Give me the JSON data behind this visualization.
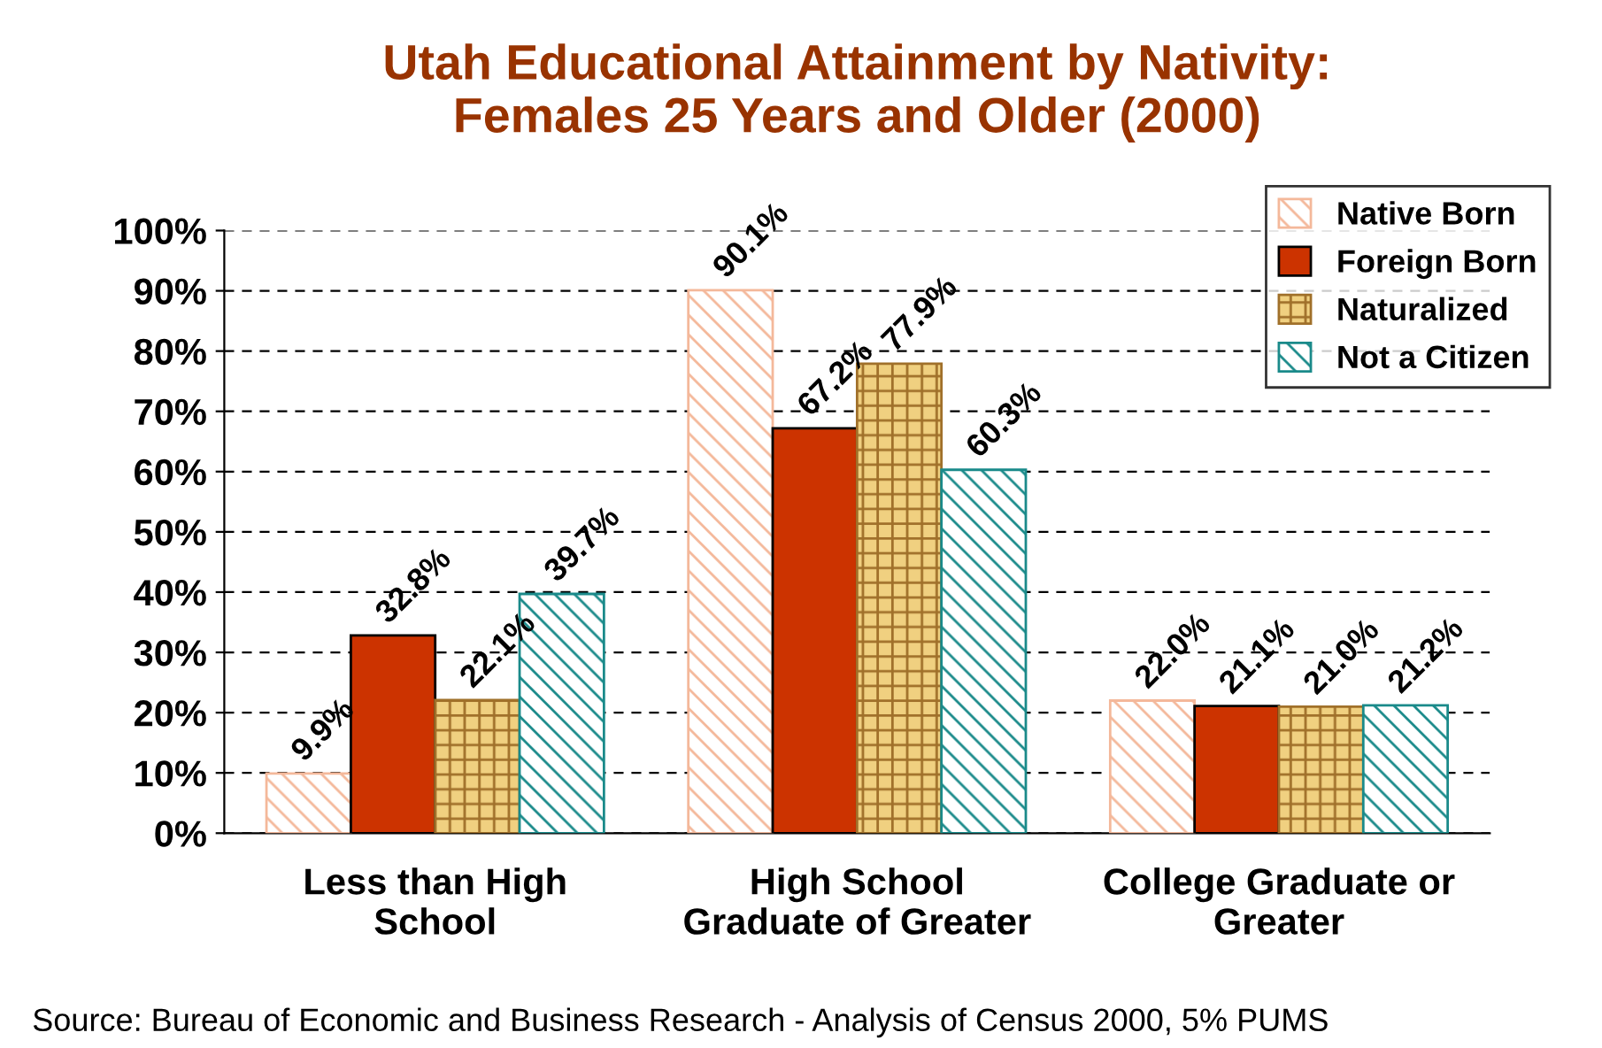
{
  "chart_data": {
    "type": "bar",
    "title": "Utah Educational Attainment by Nativity:\nFemales 25 Years and Older (2000)",
    "categories": [
      "Less than High\nSchool",
      "High School\nGraduate of Greater",
      "College Graduate or\nGreater"
    ],
    "series": [
      {
        "name": "Native Born",
        "color": "#f4b89a",
        "values": [
          9.9,
          90.1,
          22.0
        ]
      },
      {
        "name": "Foreign Born",
        "color": "#cc3300",
        "values": [
          32.8,
          67.2,
          21.1
        ]
      },
      {
        "name": "Naturalized",
        "color": "#a0702a",
        "values": [
          22.1,
          77.9,
          21.0
        ]
      },
      {
        "name": "Not a Citizen",
        "color": "#1a8a8a",
        "values": [
          39.7,
          60.3,
          21.2
        ]
      }
    ],
    "ylim": [
      0,
      100
    ],
    "yticks": [
      {
        "value": 0,
        "label": "0%"
      },
      {
        "value": 10,
        "label": "10%"
      },
      {
        "value": 20,
        "label": "20%"
      },
      {
        "value": 30,
        "label": "30%"
      },
      {
        "value": 40,
        "label": "40%"
      },
      {
        "value": 50,
        "label": "50%"
      },
      {
        "value": 60,
        "label": "60%"
      },
      {
        "value": 70,
        "label": "70%"
      },
      {
        "value": 80,
        "label": "80%"
      },
      {
        "value": 90,
        "label": "90%"
      },
      {
        "value": 100,
        "label": "100%"
      }
    ],
    "value_labels": [
      [
        "9.9%",
        "90.1%",
        "22.0%"
      ],
      [
        "32.8%",
        "67.2%",
        "21.1%"
      ],
      [
        "22.1%",
        "77.9%",
        "21.0%"
      ],
      [
        "39.7%",
        "60.3%",
        "21.2%"
      ]
    ],
    "grid": "y",
    "legend": "top right",
    "annotations": [
      "Source: Bureau of Economic and Business Research - Analysis of Census 2000, 5% PUMS"
    ]
  }
}
